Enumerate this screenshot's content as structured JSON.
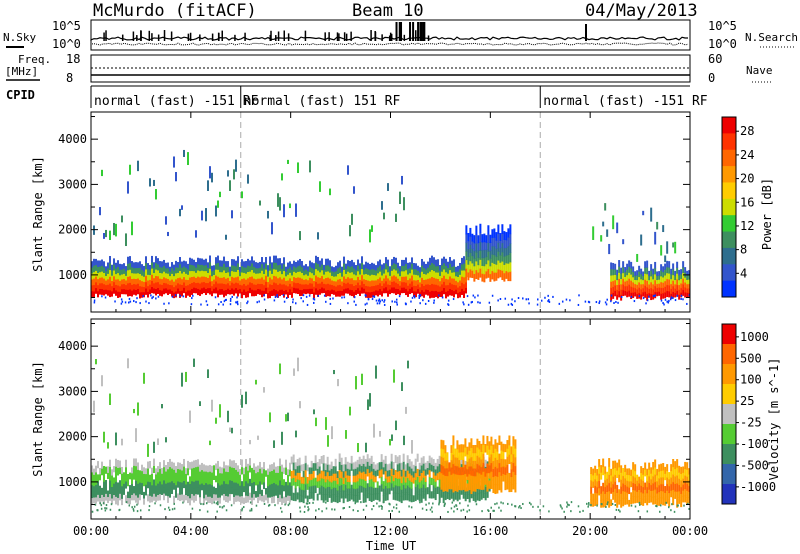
{
  "header": {
    "station": "McMurdo (fitACF)",
    "beam": "Beam 10",
    "date": "04/May/2013"
  },
  "top_panel": {
    "left_labels": {
      "nsky": "N.Sky",
      "freq": "Freq.",
      "freq_unit": "[MHz]",
      "cpid": "CPID"
    },
    "right_labels": {
      "nsearch": "N.Search",
      "nave": "Nave"
    },
    "noise_ticks": [
      "10^5",
      "10^0"
    ],
    "freq_ticks": [
      "18",
      "8"
    ],
    "nave_ticks": [
      "60",
      "0"
    ],
    "cpid_segments": [
      {
        "label": "normal (fast) -151 RF",
        "start_hour": 0,
        "end_hour": 6
      },
      {
        "label": "normal (fast) 151 RF",
        "start_hour": 6,
        "end_hour": 18
      },
      {
        "label": "normal (fast) -151 RF",
        "start_hour": 18,
        "end_hour": 24
      }
    ]
  },
  "chart_data": [
    {
      "type": "heatmap",
      "name": "power-panel",
      "ylabel": "Slant Range [km]",
      "x_range_hours": [
        0,
        24
      ],
      "ylim": [
        180,
        4600
      ],
      "yticks": [
        1000,
        2000,
        3000,
        4000
      ],
      "colorbar": {
        "label": "Power [dB]",
        "ticks": [
          "4",
          "8",
          "12",
          "16",
          "20",
          "24",
          "28"
        ],
        "colors": [
          "#0033ff",
          "#3355cc",
          "#2e6e8e",
          "#3d8f5f",
          "#33cc33",
          "#ccdd00",
          "#ffcc00",
          "#ff9900",
          "#ff6600",
          "#ff3300",
          "#ee0000"
        ]
      },
      "regions": [
        {
          "from_hour": 0.0,
          "to_hour": 15.0,
          "range_lo": 550,
          "range_hi": 1300,
          "level": "high"
        },
        {
          "from_hour": 15.0,
          "to_hour": 16.8,
          "range_lo": 900,
          "range_hi": 2000,
          "level": "low"
        },
        {
          "from_hour": 0.0,
          "to_hour": 13.0,
          "range_lo": 1800,
          "range_hi": 3600,
          "level": "sparse"
        },
        {
          "from_hour": 20.8,
          "to_hour": 24.0,
          "range_lo": 500,
          "range_hi": 1200,
          "level": "high"
        },
        {
          "from_hour": 20.0,
          "to_hour": 23.5,
          "range_lo": 1300,
          "range_hi": 2500,
          "level": "sparse"
        }
      ]
    },
    {
      "type": "heatmap",
      "name": "velocity-panel",
      "ylabel": "Slant Range [km]",
      "x_range_hours": [
        0,
        24
      ],
      "ylim": [
        180,
        4600
      ],
      "yticks": [
        1000,
        2000,
        3000,
        4000
      ],
      "colorbar": {
        "label": "Velocity [m s^-1]",
        "ticks": [
          "1000",
          "500",
          "100",
          "25",
          "-25",
          "-100",
          "-500",
          "-1000"
        ],
        "colors": [
          "#2233bb",
          "#3366aa",
          "#3d8f5f",
          "#55cc33",
          "#c0c0c0",
          "#ffcc00",
          "#ff9900",
          "#ff6600",
          "#ee0000"
        ]
      },
      "regions": [
        {
          "from_hour": 0.0,
          "to_hour": 8.0,
          "range_lo": 550,
          "range_hi": 1400,
          "level": "green-grey"
        },
        {
          "from_hour": 8.0,
          "to_hour": 16.0,
          "range_lo": 600,
          "range_hi": 1500,
          "level": "green-orange"
        },
        {
          "from_hour": 14.0,
          "to_hour": 17.0,
          "range_lo": 800,
          "range_hi": 1900,
          "level": "orange"
        },
        {
          "from_hour": 20.0,
          "to_hour": 24.0,
          "range_lo": 500,
          "range_hi": 1400,
          "level": "orange"
        },
        {
          "from_hour": 0.0,
          "to_hour": 13.0,
          "range_lo": 1800,
          "range_hi": 3600,
          "level": "sparse"
        }
      ]
    }
  ],
  "x_axis": {
    "tick_labels": [
      "00:00",
      "04:00",
      "08:00",
      "12:00",
      "16:00",
      "20:00",
      "00:00"
    ],
    "tick_hours": [
      0,
      4,
      8,
      12,
      16,
      20,
      24
    ],
    "label": "Time UT"
  }
}
